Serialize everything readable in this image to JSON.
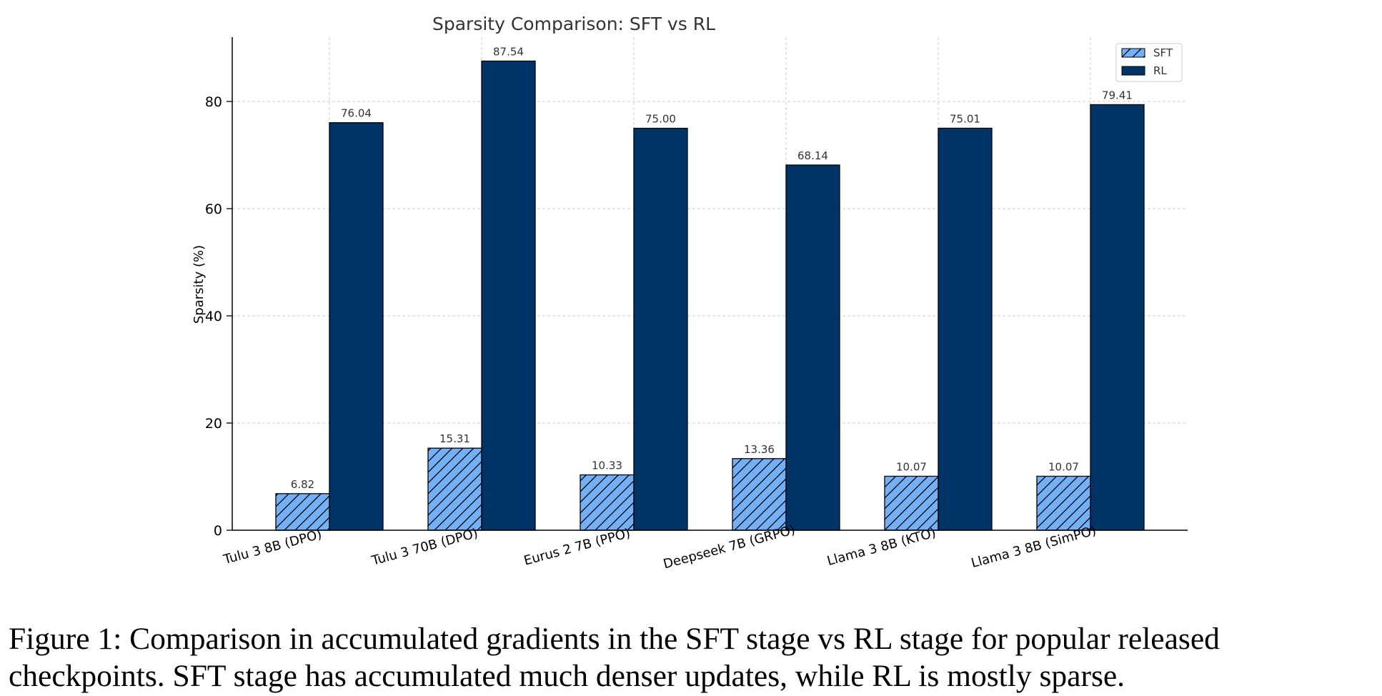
{
  "chart_data": {
    "type": "bar",
    "title": "Sparsity Comparison: SFT vs RL",
    "xlabel": "",
    "ylabel": "Sparsity (%)",
    "categories": [
      "Tulu 3 8B (DPO)",
      "Tulu 3 70B (DPO)",
      "Eurus 2 7B (PPO)",
      "Deepseek 7B (GRPO)",
      "Llama 3 8B (KTO)",
      "Llama 3 8B (SimPO)"
    ],
    "series": [
      {
        "name": "SFT",
        "values": [
          6.82,
          15.31,
          10.33,
          13.36,
          10.07,
          10.07
        ],
        "labels": [
          "6.82",
          "15.31",
          "10.33",
          "13.36",
          "10.07",
          "10.07"
        ],
        "color": "#74b0f8",
        "hatch": "diagonal"
      },
      {
        "name": "RL",
        "values": [
          76.04,
          87.54,
          75.0,
          68.14,
          75.01,
          79.41
        ],
        "labels": [
          "76.04",
          "87.54",
          "75.00",
          "68.14",
          "75.01",
          "79.41"
        ],
        "color": "#003366",
        "hatch": "none"
      }
    ],
    "yticks": [
      0,
      20,
      40,
      60,
      80
    ],
    "ylim": [
      0,
      92
    ],
    "grid": true,
    "legend_position": "top-right"
  },
  "caption": "Figure 1: Comparison in accumulated gradients in the SFT stage vs RL stage for popular released checkpoints. SFT stage has accumulated much denser updates, while RL is mostly sparse."
}
